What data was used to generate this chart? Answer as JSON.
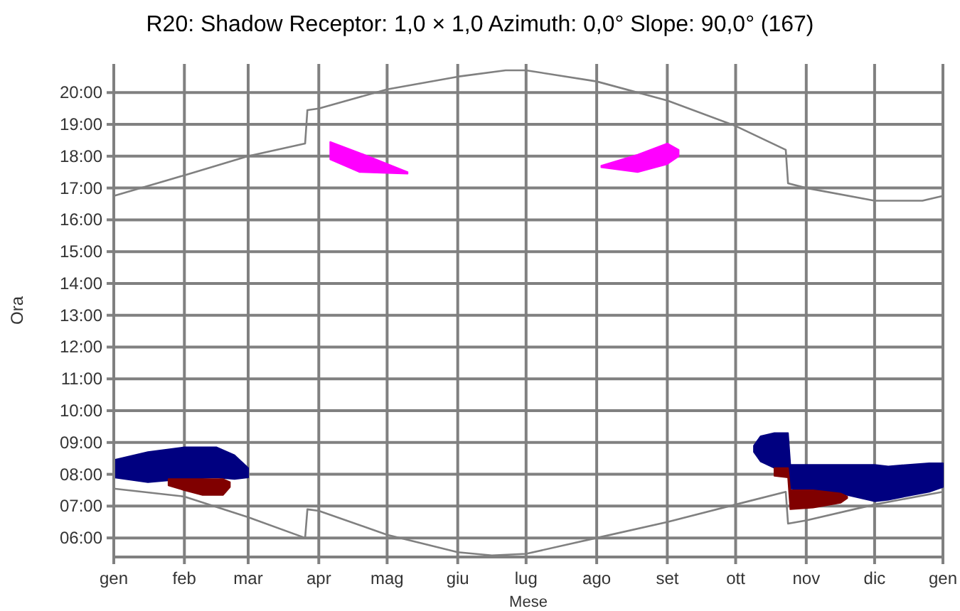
{
  "chart_data": {
    "type": "line",
    "title": "R20: Shadow Receptor: 1,0 × 1,0  Azimuth: 0,0°  Slope: 90,0° (167)",
    "xlabel": "Mese",
    "ylabel": "Ora",
    "xlim": [
      "--01-01",
      "--12-31"
    ],
    "xticks": [
      {
        "value": "--01-01",
        "label": "gen"
      },
      {
        "value": "--02-01",
        "label": "feb"
      },
      {
        "value": "--03-01",
        "label": "mar"
      },
      {
        "value": "--04-01",
        "label": "apr"
      },
      {
        "value": "--05-01",
        "label": "mag"
      },
      {
        "value": "--06-01",
        "label": "giu"
      },
      {
        "value": "--07-01",
        "label": "lug"
      },
      {
        "value": "--08-01",
        "label": "ago"
      },
      {
        "value": "--09-01",
        "label": "set"
      },
      {
        "value": "--10-01",
        "label": "ott"
      },
      {
        "value": "--11-01",
        "label": "nov"
      },
      {
        "value": "--12-01",
        "label": "dic"
      },
      {
        "value": "--12-31",
        "label": "gen"
      }
    ],
    "ylim": [
      5.4,
      20.9
    ],
    "yticks": [
      {
        "value": 6,
        "label": "06:00"
      },
      {
        "value": 7,
        "label": "07:00"
      },
      {
        "value": 8,
        "label": "08:00"
      },
      {
        "value": 9,
        "label": "09:00"
      },
      {
        "value": 10,
        "label": "10:00"
      },
      {
        "value": 11,
        "label": "11:00"
      },
      {
        "value": 12,
        "label": "12:00"
      },
      {
        "value": 13,
        "label": "13:00"
      },
      {
        "value": 14,
        "label": "14:00"
      },
      {
        "value": 15,
        "label": "15:00"
      },
      {
        "value": 16,
        "label": "16:00"
      },
      {
        "value": 17,
        "label": "17:00"
      },
      {
        "value": 18,
        "label": "18:00"
      },
      {
        "value": 19,
        "label": "19:00"
      },
      {
        "value": 20,
        "label": "20:00"
      }
    ],
    "grid": true,
    "marker": "none",
    "line_style": "solid",
    "series": [
      {
        "type": "line",
        "color": "#808080",
        "x": [
          "--01-01",
          "--02-01",
          "--03-01",
          "--03-26",
          "--03-27",
          "--04-01",
          "--05-01",
          "--06-01",
          "--06-22",
          "--07-01",
          "--08-01",
          "--09-01",
          "--10-01",
          "--10-23",
          "--10-24",
          "--11-01",
          "--12-01",
          "--12-22",
          "--12-31"
        ],
        "values": [
          16.75,
          17.4,
          18.0,
          18.4,
          19.45,
          19.5,
          20.1,
          20.5,
          20.7,
          20.7,
          20.35,
          19.75,
          18.95,
          18.2,
          17.15,
          17.0,
          16.6,
          16.6,
          16.75
        ]
      },
      {
        "type": "line",
        "color": "#808080",
        "x": [
          "--01-01",
          "--02-01",
          "--03-01",
          "--03-26",
          "--03-27",
          "--04-01",
          "--05-01",
          "--06-01",
          "--06-16",
          "--07-01",
          "--08-01",
          "--09-01",
          "--10-01",
          "--10-23",
          "--10-24",
          "--11-01",
          "--12-01",
          "--12-31"
        ],
        "values": [
          7.55,
          7.3,
          6.65,
          6.0,
          6.9,
          6.85,
          6.1,
          5.55,
          5.45,
          5.5,
          6.0,
          6.5,
          7.05,
          7.45,
          6.45,
          6.55,
          7.05,
          7.45
        ]
      },
      {
        "type": "line",
        "color": "#000080",
        "x": [
          "--01-01",
          "--01-16",
          "--02-01",
          "--02-15",
          "--02-23",
          "--03-01"
        ],
        "values": [
          null,
          null,
          null,
          null,
          null,
          null
        ],
        "lower": [
          7.9,
          7.75,
          7.85,
          7.9,
          7.85,
          7.9
        ],
        "upper": [
          8.45,
          8.7,
          8.85,
          8.85,
          8.6,
          8.2
        ]
      },
      {
        "type": "line",
        "color": "#800000",
        "x": [
          "--01-25",
          "--02-01",
          "--02-09",
          "--02-18",
          "--02-21"
        ],
        "values": [
          null,
          null,
          null,
          null,
          null
        ],
        "lower": [
          7.65,
          7.5,
          7.35,
          7.35,
          7.6
        ],
        "upper": [
          7.85,
          7.85,
          7.85,
          7.85,
          7.75
        ]
      },
      {
        "type": "line",
        "color": "#000080",
        "x": [
          "--10-09",
          "--10-12",
          "--10-18",
          "--10-24",
          "--10-25",
          "--11-07",
          "--11-16",
          "--12-01",
          "--12-07",
          "--12-25",
          "--12-31"
        ],
        "values": [
          null,
          null,
          null,
          null,
          null,
          null,
          null,
          null,
          null,
          null,
          null
        ],
        "lower": [
          8.7,
          8.4,
          8.2,
          8.2,
          7.55,
          7.5,
          7.4,
          7.15,
          7.2,
          7.45,
          7.6
        ],
        "upper": [
          8.9,
          9.2,
          9.3,
          9.3,
          8.3,
          8.3,
          8.3,
          8.3,
          8.25,
          8.35,
          8.35
        ]
      },
      {
        "type": "line",
        "color": "#800000",
        "x": [
          "--10-18",
          "--10-24",
          "--10-25",
          "--11-04",
          "--11-16",
          "--11-19"
        ],
        "values": [
          null,
          null,
          null,
          null,
          null,
          null
        ],
        "lower": [
          7.95,
          7.9,
          6.9,
          6.95,
          7.1,
          7.25
        ],
        "upper": [
          8.2,
          8.2,
          7.5,
          7.5,
          7.4,
          7.3
        ]
      },
      {
        "type": "line",
        "color": "#ff00ff",
        "x": [
          "--04-06",
          "--04-19",
          "--05-10"
        ],
        "values": [
          null,
          null,
          null
        ],
        "lower": [
          17.9,
          17.5,
          17.45
        ],
        "upper": [
          18.45,
          18.1,
          17.5
        ]
      },
      {
        "type": "line",
        "color": "#ff00ff",
        "x": [
          "--08-03",
          "--08-19",
          "--09-01",
          "--09-06"
        ],
        "values": [
          null,
          null,
          null,
          null
        ],
        "lower": [
          17.65,
          17.5,
          17.75,
          18.0
        ],
        "upper": [
          17.7,
          18.05,
          18.4,
          18.2
        ]
      }
    ]
  }
}
